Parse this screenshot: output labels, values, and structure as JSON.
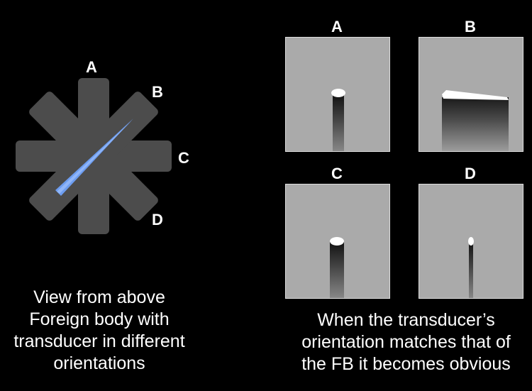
{
  "left": {
    "labels": {
      "a": "A",
      "b": "B",
      "c": "C",
      "d": "D"
    },
    "caption": [
      "View from above",
      "Foreign body with",
      "transducer in different",
      "orientations"
    ]
  },
  "right": {
    "panels": [
      {
        "label": "A",
        "view": "narrow-column"
      },
      {
        "label": "B",
        "view": "wide-block"
      },
      {
        "label": "C",
        "view": "narrow-column"
      },
      {
        "label": "D",
        "view": "thin-line"
      }
    ],
    "caption": [
      "When the transducer’s",
      "orientation matches that of",
      "the FB it becomes obvious"
    ]
  },
  "colors": {
    "background": "#000000",
    "probe": "#666666",
    "foreign_body": "#5b8fe6",
    "panel": "#aaaaaa"
  }
}
